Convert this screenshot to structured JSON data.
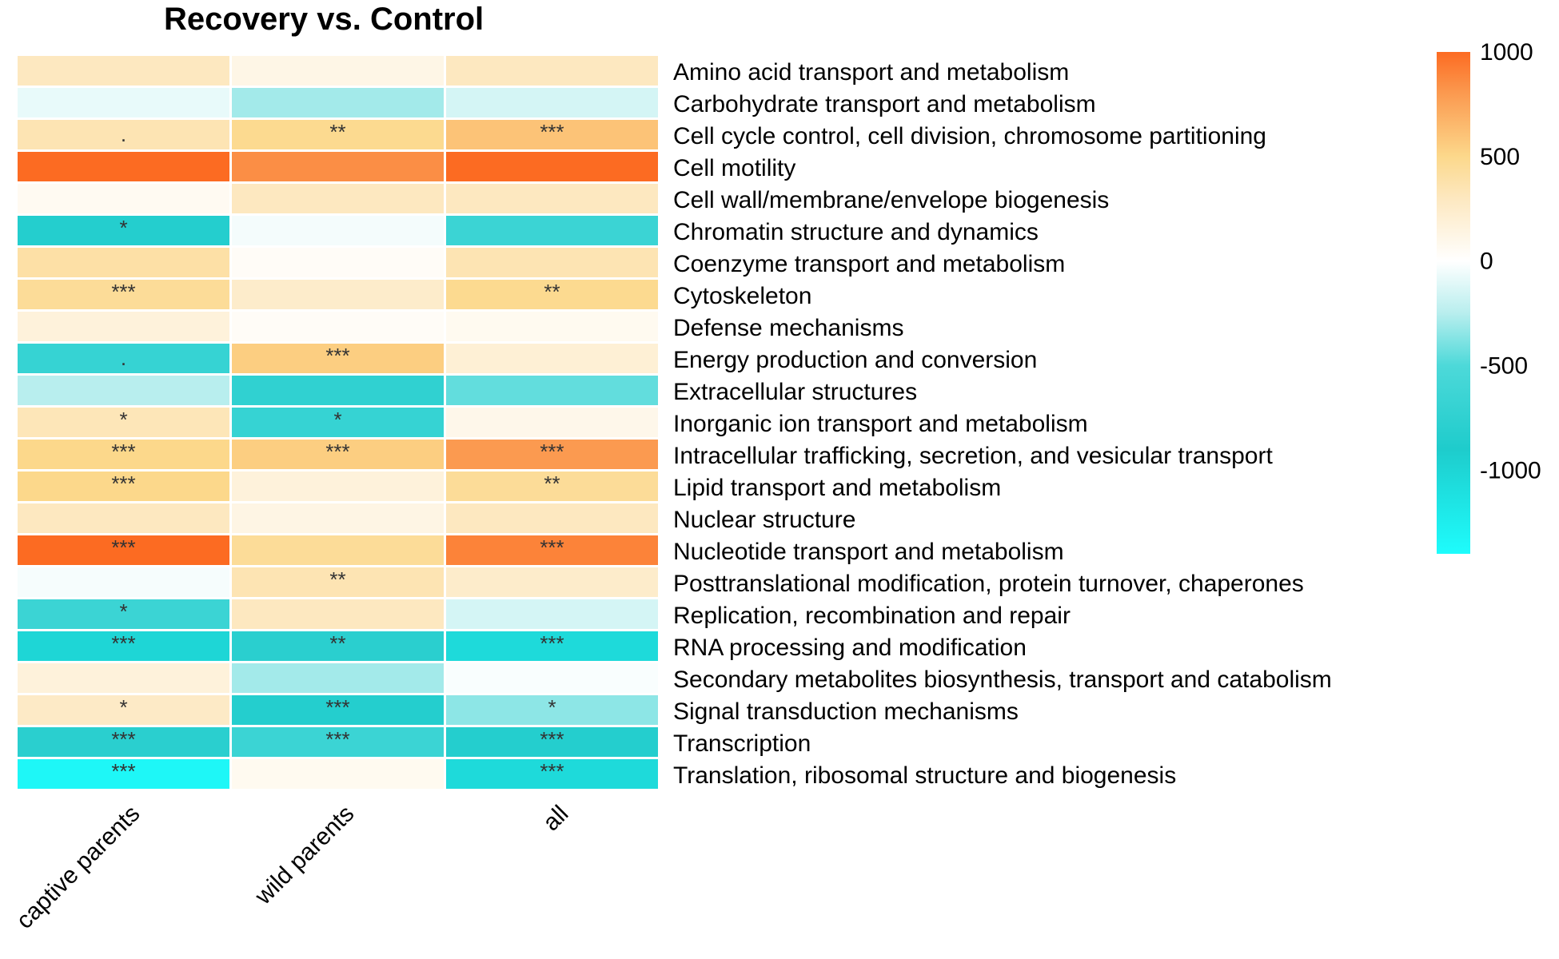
{
  "chart_data": {
    "type": "heatmap",
    "title": "Recovery vs. Control",
    "columns": [
      "captive parents",
      "wild parents",
      "all"
    ],
    "rows": [
      "Amino acid transport and metabolism",
      "Carbohydrate transport and metabolism",
      "Cell cycle control, cell division, chromosome partitioning",
      "Cell motility",
      "Cell wall/membrane/envelope biogenesis",
      "Chromatin structure and dynamics",
      "Coenzyme transport and metabolism",
      "Cytoskeleton",
      "Defense mechanisms",
      "Energy production and conversion",
      "Extracellular structures",
      "Inorganic ion transport and metabolism",
      "Intracellular trafficking, secretion, and vesicular transport",
      "Lipid transport and metabolism",
      "Nuclear structure",
      "Nucleotide transport and metabolism",
      "Posttranslational modification, protein turnover, chaperones",
      "Replication, recombination and repair",
      "RNA processing and modification",
      "Secondary metabolites biosynthesis, transport and catabolism",
      "Signal transduction mechanisms",
      "Transcription",
      "Translation, ribosomal structure and biogenesis"
    ],
    "values": [
      [
        300,
        120,
        300
      ],
      [
        -80,
        -300,
        -150
      ],
      [
        350,
        480,
        600
      ],
      [
        1000,
        850,
        1050
      ],
      [
        60,
        300,
        300
      ],
      [
        -850,
        -40,
        -650
      ],
      [
        400,
        40,
        350
      ],
      [
        450,
        250,
        480
      ],
      [
        170,
        40,
        70
      ],
      [
        -700,
        550,
        200
      ],
      [
        -250,
        -750,
        -450
      ],
      [
        330,
        -700,
        100
      ],
      [
        500,
        550,
        800
      ],
      [
        500,
        170,
        450
      ],
      [
        300,
        130,
        300
      ],
      [
        1050,
        450,
        900
      ],
      [
        -30,
        350,
        250
      ],
      [
        -650,
        300,
        -150
      ],
      [
        -1000,
        -800,
        -1050
      ],
      [
        170,
        -300,
        -20
      ],
      [
        270,
        -850,
        -350
      ],
      [
        -800,
        -650,
        -850
      ],
      [
        -1350,
        70,
        -1050
      ]
    ],
    "significance": [
      [
        "",
        "",
        ""
      ],
      [
        "",
        "",
        ""
      ],
      [
        ".",
        "**",
        "***"
      ],
      [
        "",
        "",
        ""
      ],
      [
        "",
        "",
        ""
      ],
      [
        "*",
        "",
        ""
      ],
      [
        "",
        "",
        ""
      ],
      [
        "***",
        "",
        "**"
      ],
      [
        "",
        "",
        ""
      ],
      [
        ".",
        "***",
        ""
      ],
      [
        "",
        "",
        ""
      ],
      [
        "*",
        "*",
        ""
      ],
      [
        "***",
        "***",
        "***"
      ],
      [
        "***",
        "",
        "**"
      ],
      [
        "",
        "",
        ""
      ],
      [
        "***",
        "",
        "***"
      ],
      [
        "",
        "**",
        ""
      ],
      [
        "*",
        "",
        ""
      ],
      [
        "***",
        "**",
        "***"
      ],
      [
        "",
        "",
        ""
      ],
      [
        "*",
        "***",
        "*"
      ],
      [
        "***",
        "***",
        "***"
      ],
      [
        "***",
        "",
        "***"
      ]
    ],
    "color_scale": {
      "min": -1400,
      "max": 1000,
      "ticks": [
        1000,
        500,
        0,
        -500,
        -1000
      ],
      "stops": [
        {
          "value": -1400,
          "color": "#1efcfc"
        },
        {
          "value": -900,
          "color": "#1ecccc"
        },
        {
          "value": -500,
          "color": "#4dd9d9"
        },
        {
          "value": -250,
          "color": "#b8eeee"
        },
        {
          "value": 0,
          "color": "#ffffff"
        },
        {
          "value": 300,
          "color": "#fde8c0"
        },
        {
          "value": 500,
          "color": "#fcd88b"
        },
        {
          "value": 800,
          "color": "#fb9a50"
        },
        {
          "value": 1000,
          "color": "#fc6b22"
        }
      ]
    }
  }
}
